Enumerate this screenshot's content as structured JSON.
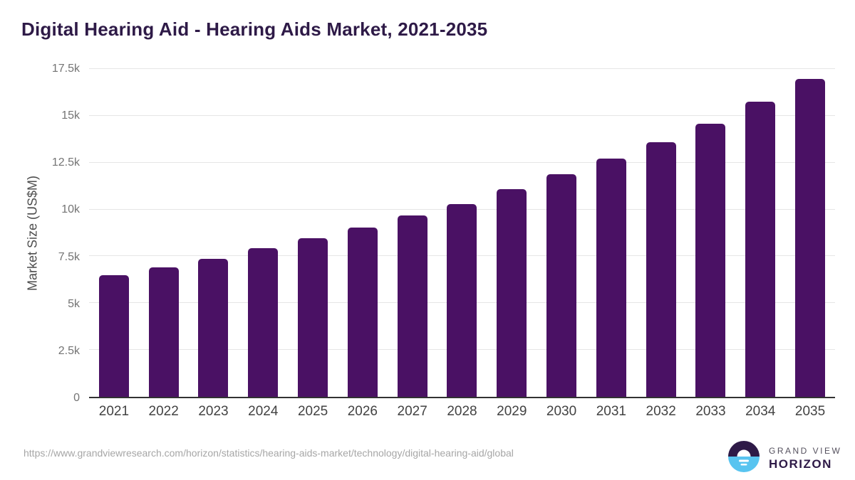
{
  "page": {
    "title": "Digital Hearing Aid - Hearing Aids Market, 2021-2035",
    "source_url": "https://www.grandviewresearch.com/horizon/statistics/hearing-aids-market/technology/digital-hearing-aid/global"
  },
  "logo": {
    "line1": "GRAND VIEW",
    "line2": "HORIZON"
  },
  "chart_data": {
    "type": "bar",
    "title": "Digital Hearing Aid - Hearing Aids Market, 2021-2035",
    "categories": [
      "2021",
      "2022",
      "2023",
      "2024",
      "2025",
      "2026",
      "2027",
      "2028",
      "2029",
      "2030",
      "2031",
      "2032",
      "2033",
      "2034",
      "2035"
    ],
    "values": [
      6500,
      6920,
      7370,
      7940,
      8470,
      9030,
      9670,
      10280,
      11070,
      11870,
      12700,
      13600,
      14590,
      15750,
      16960
    ],
    "xlabel": "",
    "ylabel": "Market Size (US$M)",
    "ylim": [
      0,
      17500
    ],
    "yticks": [
      {
        "value": 0,
        "label": "0"
      },
      {
        "value": 2500,
        "label": "2.5k"
      },
      {
        "value": 5000,
        "label": "5k"
      },
      {
        "value": 7500,
        "label": "7.5k"
      },
      {
        "value": 10000,
        "label": "10k"
      },
      {
        "value": 12500,
        "label": "12.5k"
      },
      {
        "value": 15000,
        "label": "15k"
      },
      {
        "value": 17500,
        "label": "17.5k"
      }
    ],
    "grid": "horizontal",
    "legend": "none"
  },
  "colors": {
    "bar": "#4a1164",
    "title_text": "#2e1a47",
    "axis_line": "#323232",
    "gridline": "#e6e6e6",
    "y_tick_text": "#747474",
    "x_tick_text": "#424242",
    "y_axis_title_text": "#4d4d4d",
    "url_text": "#a6a6a6",
    "logo_dark": "#2e1a47",
    "logo_blue": "#58c4f0",
    "logo_gray": "#55515e"
  }
}
